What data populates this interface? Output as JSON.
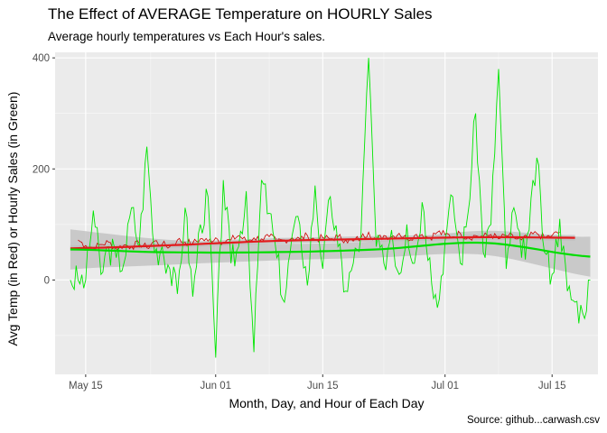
{
  "chart_data": {
    "type": "line",
    "title": "The Effect of AVERAGE Temperature on HOURLY Sales",
    "subtitle": "Average hourly temperatures vs Each Hour's sales.",
    "caption": "Source: github...carwash.csv",
    "xlabel": "Month, Day, and Hour of Each Day",
    "ylabel": "Avg Temp (in Red) or Hourly Sales (in Green)",
    "x_ticks": [
      "May 15",
      "Jun 01",
      "Jun 15",
      "Jul 01",
      "Jul 15"
    ],
    "y_ticks": [
      0,
      200,
      400
    ],
    "xlim": [
      "2019-05-11",
      "2019-07-21"
    ],
    "ylim": [
      -170,
      410
    ],
    "grid": true,
    "background": "#ebebeb",
    "colors": {
      "temperature": "#cc0000",
      "sales": "#00e600",
      "smooth_temp": "#e31a1c",
      "smooth_sales": "#00dd00",
      "ribbon": "#bdbdbd"
    },
    "series": [
      {
        "role": "temperature",
        "x": [
          "2019-05-14",
          "2019-05-15",
          "2019-05-16",
          "2019-05-17",
          "2019-05-18",
          "2019-05-19",
          "2019-05-20",
          "2019-05-21",
          "2019-05-22",
          "2019-05-23",
          "2019-05-24",
          "2019-05-25",
          "2019-05-26",
          "2019-05-27",
          "2019-05-28",
          "2019-05-29",
          "2019-05-30",
          "2019-05-31",
          "2019-06-01",
          "2019-06-02",
          "2019-06-03",
          "2019-06-04",
          "2019-06-05",
          "2019-06-06",
          "2019-06-07",
          "2019-06-08",
          "2019-06-09",
          "2019-06-10",
          "2019-06-11",
          "2019-06-12",
          "2019-06-13",
          "2019-06-14",
          "2019-06-15",
          "2019-06-16",
          "2019-06-17",
          "2019-06-18",
          "2019-06-19",
          "2019-06-20",
          "2019-06-21",
          "2019-06-22",
          "2019-06-23",
          "2019-06-24",
          "2019-06-25",
          "2019-06-26",
          "2019-06-27",
          "2019-06-28",
          "2019-06-29",
          "2019-06-30",
          "2019-07-01",
          "2019-07-02",
          "2019-07-03",
          "2019-07-04",
          "2019-07-05",
          "2019-07-06",
          "2019-07-07",
          "2019-07-08",
          "2019-07-09",
          "2019-07-10",
          "2019-07-11",
          "2019-07-12",
          "2019-07-13",
          "2019-07-14",
          "2019-07-15",
          "2019-07-16"
        ],
        "values": [
          72,
          62,
          58,
          64,
          68,
          56,
          63,
          60,
          66,
          58,
          70,
          64,
          60,
          72,
          68,
          66,
          74,
          70,
          76,
          68,
          72,
          80,
          70,
          76,
          74,
          78,
          70,
          72,
          76,
          74,
          80,
          72,
          76,
          74,
          78,
          72,
          70,
          76,
          86,
          72,
          80,
          78,
          84,
          74,
          80,
          82,
          76,
          86,
          82,
          78,
          84,
          76,
          80,
          78,
          82,
          74,
          80,
          76,
          72,
          78,
          84,
          76,
          80,
          86
        ]
      },
      {
        "role": "sales",
        "x": [
          "2019-05-13",
          "2019-05-14",
          "2019-05-15",
          "2019-05-16",
          "2019-05-17",
          "2019-05-18",
          "2019-05-19",
          "2019-05-20",
          "2019-05-21",
          "2019-05-22",
          "2019-05-23",
          "2019-05-24",
          "2019-05-25",
          "2019-05-26",
          "2019-05-27",
          "2019-05-28",
          "2019-05-29",
          "2019-05-30",
          "2019-05-31",
          "2019-06-01",
          "2019-06-02",
          "2019-06-03",
          "2019-06-04",
          "2019-06-05",
          "2019-06-06",
          "2019-06-07",
          "2019-06-08",
          "2019-06-09",
          "2019-06-10",
          "2019-06-11",
          "2019-06-12",
          "2019-06-13",
          "2019-06-14",
          "2019-06-15",
          "2019-06-16",
          "2019-06-17",
          "2019-06-18",
          "2019-06-19",
          "2019-06-20",
          "2019-06-21",
          "2019-06-22",
          "2019-06-23",
          "2019-06-24",
          "2019-06-25",
          "2019-06-26",
          "2019-06-27",
          "2019-06-28",
          "2019-06-29",
          "2019-06-30",
          "2019-07-01",
          "2019-07-02",
          "2019-07-03",
          "2019-07-04",
          "2019-07-05",
          "2019-07-06",
          "2019-07-07",
          "2019-07-08",
          "2019-07-09",
          "2019-07-10",
          "2019-07-11",
          "2019-07-12",
          "2019-07-13",
          "2019-07-14",
          "2019-07-15",
          "2019-07-16",
          "2019-07-17",
          "2019-07-18",
          "2019-07-19",
          "2019-07-20"
        ],
        "values": [
          0,
          0,
          0,
          125,
          10,
          60,
          40,
          30,
          130,
          60,
          240,
          50,
          60,
          20,
          -25,
          130,
          -30,
          100,
          150,
          -140,
          180,
          30,
          60,
          160,
          -130,
          180,
          120,
          40,
          -40,
          80,
          100,
          -10,
          170,
          20,
          150,
          60,
          -20,
          30,
          80,
          400,
          60,
          30,
          90,
          10,
          100,
          30,
          140,
          40,
          -50,
          70,
          150,
          30,
          120,
          300,
          50,
          100,
          380,
          20,
          130,
          40,
          90,
          220,
          50,
          10,
          110,
          -20,
          -40,
          -60,
          0
        ]
      },
      {
        "role": "smooth_temp",
        "x": [
          "2019-05-13",
          "2019-05-25",
          "2019-06-08",
          "2019-06-22",
          "2019-07-06",
          "2019-07-18"
        ],
        "values": [
          57,
          62,
          70,
          74,
          77,
          76
        ]
      },
      {
        "role": "smooth_sales",
        "x": [
          "2019-05-13",
          "2019-05-25",
          "2019-06-08",
          "2019-06-22",
          "2019-07-06",
          "2019-07-20"
        ],
        "values": [
          55,
          50,
          50,
          55,
          67,
          42
        ]
      }
    ]
  }
}
